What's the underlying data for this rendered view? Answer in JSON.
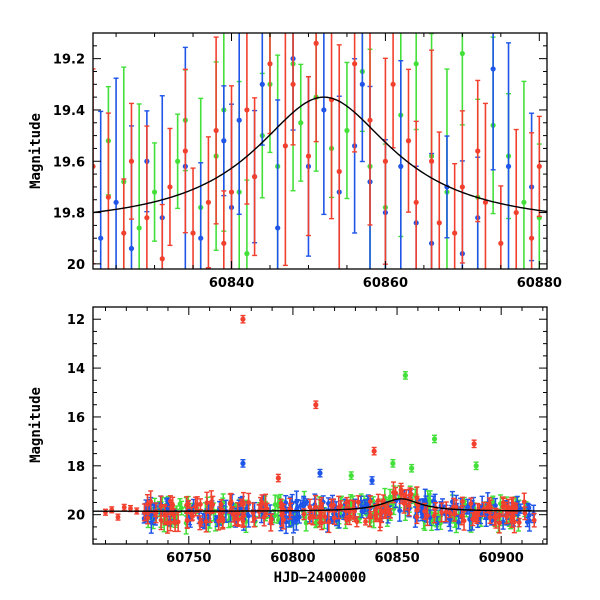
{
  "colors": {
    "green": "#44e03a",
    "blue": "#1f55e8",
    "red": "#f2402f",
    "model": "#000000"
  },
  "chart_data": [
    {
      "type": "scatter",
      "panel": "top",
      "xlabel": "",
      "ylabel": "Magnitude",
      "xlim": [
        60822,
        60881
      ],
      "ylim": [
        20.02,
        19.1
      ],
      "y_inverted": true,
      "xticks": [
        60840,
        60860,
        60880
      ],
      "xtick_labels": [
        "60840",
        "60860",
        "60880"
      ],
      "yticks": [
        19.2,
        19.4,
        19.6,
        19.8,
        20.0
      ],
      "ytick_labels": [
        "19.2",
        "19.4",
        "19.6",
        "19.8",
        "20"
      ],
      "model_curve": {
        "shape": "lorentzian-like",
        "peak_x": 60852,
        "peak_mag": 19.35,
        "baseline_mag": 19.86,
        "half_width_days": 11
      },
      "series": [
        {
          "color": "green",
          "points": [
            [
              60824,
              19.52
            ],
            [
              60826,
              19.68
            ],
            [
              60828,
              19.86
            ],
            [
              60830,
              19.72
            ],
            [
              60833,
              19.6
            ],
            [
              60834,
              19.44
            ],
            [
              60836,
              19.78
            ],
            [
              60838,
              19.58
            ],
            [
              60839,
              19.4
            ],
            [
              60841,
              19.72
            ],
            [
              60842,
              19.96
            ],
            [
              60844,
              19.5
            ],
            [
              60845,
              19.3
            ],
            [
              60846,
              19.62
            ],
            [
              60848,
              19.22
            ],
            [
              60849,
              19.45
            ],
            [
              60851,
              19.35
            ],
            [
              60853,
              19.55
            ],
            [
              60855,
              19.48
            ],
            [
              60857,
              19.25
            ],
            [
              60858,
              19.62
            ],
            [
              60860,
              19.78
            ],
            [
              60862,
              19.42
            ],
            [
              60864,
              19.22
            ],
            [
              60866,
              19.58
            ],
            [
              60868,
              19.72
            ],
            [
              60870,
              19.18
            ],
            [
              60872,
              19.74
            ],
            [
              60874,
              19.46
            ],
            [
              60876,
              19.58
            ],
            [
              60878,
              19.76
            ],
            [
              60880,
              19.82
            ]
          ]
        },
        {
          "color": "blue",
          "points": [
            [
              60823,
              19.9
            ],
            [
              60825,
              19.76
            ],
            [
              60827,
              19.94
            ],
            [
              60829,
              19.6
            ],
            [
              60831,
              19.82
            ],
            [
              60834,
              19.62
            ],
            [
              60836,
              19.9
            ],
            [
              60839,
              19.52
            ],
            [
              60840,
              19.78
            ],
            [
              60841,
              19.44
            ],
            [
              60843,
              19.66
            ],
            [
              60844,
              19.3
            ],
            [
              60846,
              19.86
            ],
            [
              60848,
              19.2
            ],
            [
              60850,
              19.62
            ],
            [
              60852,
              19.4
            ],
            [
              60854,
              19.72
            ],
            [
              60856,
              19.54
            ],
            [
              60857,
              19.3
            ],
            [
              60858,
              19.68
            ],
            [
              60860,
              19.8
            ],
            [
              60862,
              19.62
            ],
            [
              60864,
              19.84
            ],
            [
              60866,
              19.92
            ],
            [
              60868,
              19.7
            ],
            [
              60870,
              19.96
            ],
            [
              60872,
              19.82
            ],
            [
              60874,
              19.24
            ],
            [
              60876,
              19.62
            ],
            [
              60879,
              19.7
            ]
          ]
        },
        {
          "color": "red",
          "points": [
            [
              60822,
              19.62
            ],
            [
              60824,
              19.74
            ],
            [
              60826,
              19.88
            ],
            [
              60827,
              19.6
            ],
            [
              60829,
              19.82
            ],
            [
              60831,
              19.98
            ],
            [
              60832,
              19.7
            ],
            [
              60834,
              19.56
            ],
            [
              60835,
              19.88
            ],
            [
              60837,
              19.76
            ],
            [
              60838,
              19.48
            ],
            [
              60839,
              19.92
            ],
            [
              60840,
              19.72
            ],
            [
              60842,
              19.4
            ],
            [
              60843,
              19.66
            ],
            [
              60845,
              19.22
            ],
            [
              60847,
              19.54
            ],
            [
              60848,
              19.3
            ],
            [
              60850,
              19.58
            ],
            [
              60851,
              19.14
            ],
            [
              60853,
              19.36
            ],
            [
              60854,
              19.64
            ],
            [
              60856,
              19.22
            ],
            [
              60858,
              19.44
            ],
            [
              60860,
              19.6
            ],
            [
              60861,
              19.3
            ],
            [
              60863,
              19.52
            ],
            [
              60864,
              19.76
            ],
            [
              60866,
              19.6
            ],
            [
              60867,
              19.84
            ],
            [
              60869,
              19.88
            ],
            [
              60870,
              19.7
            ],
            [
              60872,
              19.56
            ],
            [
              60873,
              19.76
            ],
            [
              60875,
              19.92
            ],
            [
              60877,
              19.8
            ],
            [
              60879,
              19.9
            ],
            [
              60880,
              19.62
            ]
          ]
        }
      ]
    },
    {
      "type": "scatter",
      "panel": "bottom",
      "xlabel": "HJD−2400000",
      "ylabel": "Magnitude",
      "xlim": [
        60704,
        60922
      ],
      "ylim": [
        21.2,
        11.5
      ],
      "y_inverted": true,
      "xticks": [
        60750,
        60800,
        60850,
        60900
      ],
      "xtick_labels": [
        "60750",
        "60800",
        "60850",
        "60900"
      ],
      "yticks": [
        12,
        14,
        16,
        18,
        20
      ],
      "ytick_labels": [
        "12",
        "14",
        "16",
        "18",
        "20"
      ],
      "model_curve": {
        "shape": "lorentzian-like",
        "peak_x": 60852,
        "peak_mag": 19.35,
        "baseline_mag": 19.86,
        "half_width_days": 11
      },
      "outliers": [
        {
          "color": "red",
          "x": 60776,
          "y": 12.0
        },
        {
          "color": "green",
          "x": 60854,
          "y": 14.3
        },
        {
          "color": "red",
          "x": 60811,
          "y": 15.5
        },
        {
          "color": "green",
          "x": 60868,
          "y": 16.9
        },
        {
          "color": "red",
          "x": 60887,
          "y": 17.1
        },
        {
          "color": "red",
          "x": 60839,
          "y": 17.4
        },
        {
          "color": "blue",
          "x": 60776,
          "y": 17.9
        },
        {
          "color": "green",
          "x": 60848,
          "y": 17.9
        },
        {
          "color": "blue",
          "x": 60813,
          "y": 18.3
        },
        {
          "color": "green",
          "x": 60857,
          "y": 18.1
        },
        {
          "color": "green",
          "x": 60828,
          "y": 18.4
        },
        {
          "color": "blue",
          "x": 60838,
          "y": 18.6
        },
        {
          "color": "green",
          "x": 60888,
          "y": 18.0
        },
        {
          "color": "red",
          "x": 60793,
          "y": 18.5
        }
      ],
      "scatter_band": {
        "x_start": 60728,
        "x_end": 60916,
        "mag_center": 19.9,
        "mag_spread": 0.45,
        "points_per_color": 180
      },
      "early_points": [
        {
          "color": "red",
          "x": 60710,
          "y": 19.9
        },
        {
          "color": "red",
          "x": 60713,
          "y": 19.8
        },
        {
          "color": "red",
          "x": 60716,
          "y": 20.1
        },
        {
          "color": "red",
          "x": 60719,
          "y": 19.7
        },
        {
          "color": "red",
          "x": 60722,
          "y": 19.75
        },
        {
          "color": "red",
          "x": 60725,
          "y": 19.85
        }
      ]
    }
  ]
}
